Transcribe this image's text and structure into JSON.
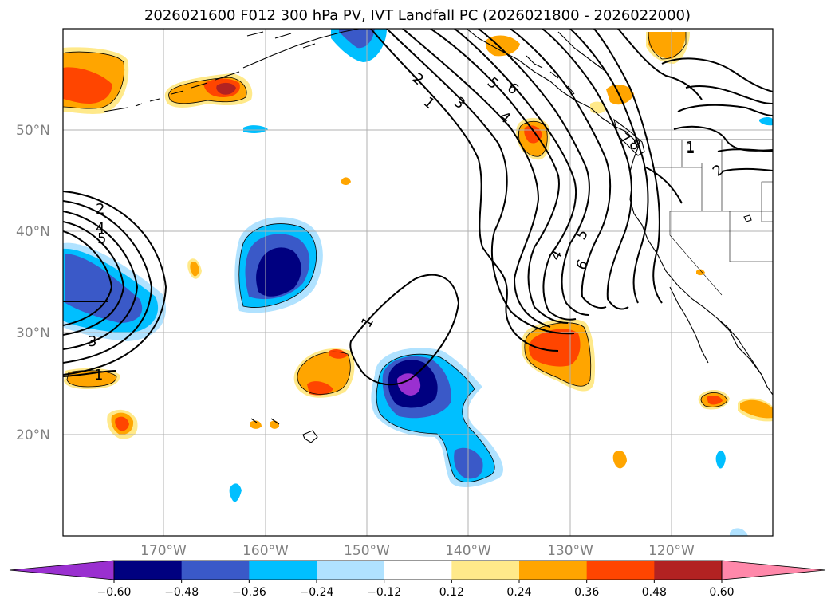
{
  "title": "2026021600 F012 300 hPa PV, IVT Landfall PC (2026021800 - 2026022000)",
  "map": {
    "lat_labels": [
      "50°N",
      "40°N",
      "30°N",
      "20°N"
    ],
    "lon_labels": [
      "170°W",
      "160°W",
      "150°W",
      "140°W",
      "130°W",
      "120°W"
    ],
    "contour_labels": [
      "1",
      "2",
      "3",
      "4",
      "5",
      "6",
      "7",
      "8",
      "1",
      "2",
      "4",
      "5",
      "3",
      "1",
      "1",
      "4",
      "5",
      "6",
      "1",
      "2"
    ]
  },
  "colorbar": {
    "ticks": [
      "−0.60",
      "−0.48",
      "−0.36",
      "−0.24",
      "−0.12",
      "0.12",
      "0.24",
      "0.36",
      "0.48",
      "0.60"
    ],
    "colors": [
      "#9a30d0",
      "#000080",
      "#3a59c8",
      "#00bfff",
      "#b0e2ff",
      "#ffffff",
      "#ffe98a",
      "#ffa500",
      "#ff4500",
      "#b22222",
      "#ff88aa"
    ]
  }
}
